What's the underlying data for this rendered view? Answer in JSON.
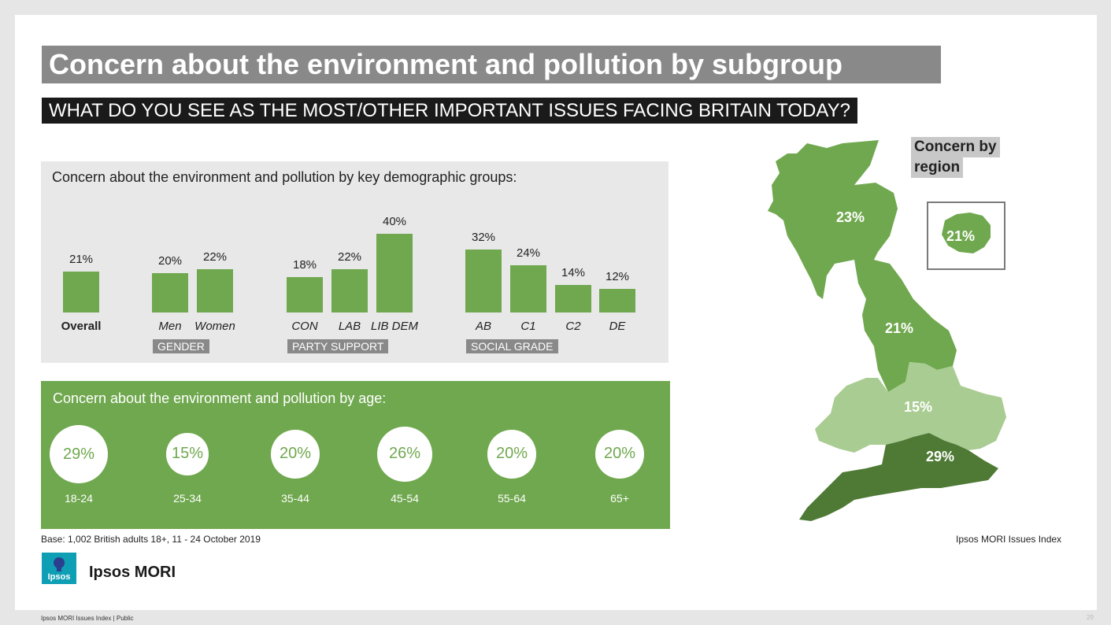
{
  "title": "Concern about the environment and pollution by subgroup",
  "subtitle": "WHAT DO YOU SEE AS THE MOST/OTHER IMPORTANT ISSUES FACING BRITAIN TODAY?",
  "demo_panel_title": "Concern about the environment and pollution by key demographic groups:",
  "age_panel_title": "Concern about the environment and pollution by age:",
  "groups": {
    "gender": "GENDER",
    "party": "PARTY SUPPORT",
    "social": "SOCIAL GRADE"
  },
  "region_legend": [
    "Concern by",
    "region"
  ],
  "regions": {
    "scotland": "23%",
    "north": "21%",
    "midlands": "15%",
    "south": "29%",
    "london": "21%"
  },
  "base": "Base: 1,002 British adults 18+, 11 - 24 October 2019",
  "source": "Ipsos MORI Issues Index",
  "logo_small": "Ipsos",
  "logo_text": "Ipsos MORI",
  "footer": "Ipsos MORI Issues Index | Public",
  "page_number": "29",
  "colors": {
    "bar": "#70a84f",
    "title_bg": "#898989",
    "subtitle_bg": "#1a1a1a",
    "map_dark": "#4e7a35",
    "map_mid": "#70a84f",
    "map_light": "#a9cc92"
  },
  "chart_data": [
    {
      "type": "bar",
      "title": "Concern about the environment and pollution by key demographic groups:",
      "categories": [
        "Overall",
        "Men",
        "Women",
        "CON",
        "LAB",
        "LIB DEM",
        "AB",
        "C1",
        "C2",
        "DE"
      ],
      "values": [
        21,
        20,
        22,
        18,
        22,
        40,
        32,
        24,
        14,
        12
      ],
      "value_labels": [
        "21%",
        "20%",
        "22%",
        "18%",
        "22%",
        "40%",
        "32%",
        "24%",
        "14%",
        "12%"
      ],
      "groups": [
        {
          "name": "GENDER",
          "categories": [
            "Men",
            "Women"
          ]
        },
        {
          "name": "PARTY SUPPORT",
          "categories": [
            "CON",
            "LAB",
            "LIB DEM"
          ]
        },
        {
          "name": "SOCIAL GRADE",
          "categories": [
            "AB",
            "C1",
            "C2",
            "DE"
          ]
        }
      ],
      "ylim": [
        0,
        40
      ]
    },
    {
      "type": "bubble",
      "title": "Concern about the environment and pollution by age:",
      "categories": [
        "18-24",
        "25-34",
        "35-44",
        "45-54",
        "55-64",
        "65+"
      ],
      "values": [
        29,
        15,
        20,
        26,
        20,
        20
      ],
      "value_labels": [
        "29%",
        "15%",
        "20%",
        "26%",
        "20%",
        "20%"
      ]
    }
  ]
}
